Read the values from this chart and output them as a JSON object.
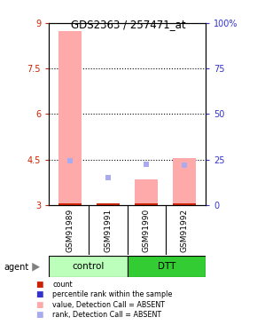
{
  "title": "GDS2363 / 257471_at",
  "samples": [
    "GSM91989",
    "GSM91991",
    "GSM91990",
    "GSM91992"
  ],
  "group_labels": [
    "control",
    "DTT"
  ],
  "control_color": "#bbffbb",
  "dtt_color": "#33cc33",
  "ylim": [
    3.0,
    9.0
  ],
  "yticks_left": [
    3,
    4.5,
    6,
    7.5,
    9
  ],
  "yticks_right": [
    0,
    25,
    50,
    75,
    100
  ],
  "ytick_labels_left": [
    "3",
    "4.5",
    "6",
    "7.5",
    "9"
  ],
  "ytick_labels_right": [
    "0",
    "25",
    "50",
    "75",
    "100%"
  ],
  "hlines": [
    4.5,
    6.0,
    7.5
  ],
  "pink_bar_tops": [
    8.75,
    3.05,
    3.85,
    4.55
  ],
  "bar_bottom": 3.0,
  "blue_square_values": [
    4.45,
    3.9,
    4.35,
    4.3
  ],
  "left_color": "#cc2200",
  "right_color": "#3333cc",
  "pink_color": "#ffaaaa",
  "light_blue_color": "#aaaaee",
  "dark_red": "#cc2200",
  "dark_blue": "#3333cc",
  "background_color": "#ffffff",
  "bar_width": 0.6,
  "small_red_bar_height": 0.06,
  "agent_label": "agent",
  "legend_items": [
    {
      "label": "count",
      "color": "#cc2200"
    },
    {
      "label": "percentile rank within the sample",
      "color": "#3333cc"
    },
    {
      "label": "value, Detection Call = ABSENT",
      "color": "#ffaaaa"
    },
    {
      "label": "rank, Detection Call = ABSENT",
      "color": "#aaaaee"
    }
  ]
}
